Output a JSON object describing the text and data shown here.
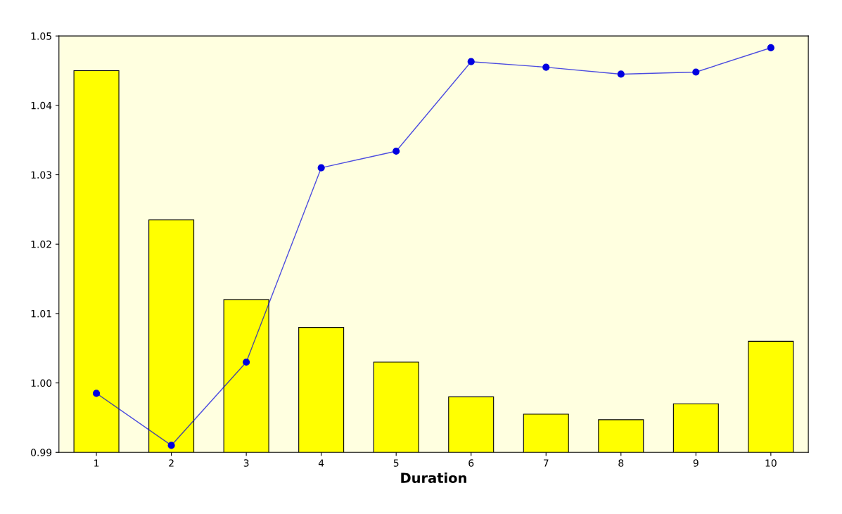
{
  "chart_data": {
    "type": "bar",
    "xlabel": "Duration",
    "categories": [
      "1",
      "2",
      "3",
      "4",
      "5",
      "6",
      "7",
      "8",
      "9",
      "10"
    ],
    "series": [
      {
        "color": "#ffff00",
        "values": [
          1.045,
          1.0235,
          1.012,
          1.008,
          1.003,
          0.998,
          0.9955,
          0.9947,
          0.997,
          1.006
        ]
      },
      {
        "type": "line",
        "color": "#0000e0",
        "values": [
          0.9985,
          0.991,
          1.003,
          1.031,
          1.0334,
          1.0463,
          1.0455,
          1.0445,
          1.0448,
          1.0483
        ]
      }
    ],
    "ylim": [
      0.99,
      1.05
    ],
    "yticks": [
      {
        "value": 0.99,
        "label": "0.99"
      },
      {
        "value": 1.0,
        "label": "1.00"
      },
      {
        "value": 1.01,
        "label": "1.01"
      },
      {
        "value": 1.02,
        "label": "1.02"
      },
      {
        "value": 1.03,
        "label": "1.03"
      },
      {
        "value": 1.04,
        "label": "1.04"
      },
      {
        "value": 1.05,
        "label": "1.05"
      }
    ],
    "marker": "circle",
    "line_style": "solid",
    "grid": false,
    "legend": false
  }
}
